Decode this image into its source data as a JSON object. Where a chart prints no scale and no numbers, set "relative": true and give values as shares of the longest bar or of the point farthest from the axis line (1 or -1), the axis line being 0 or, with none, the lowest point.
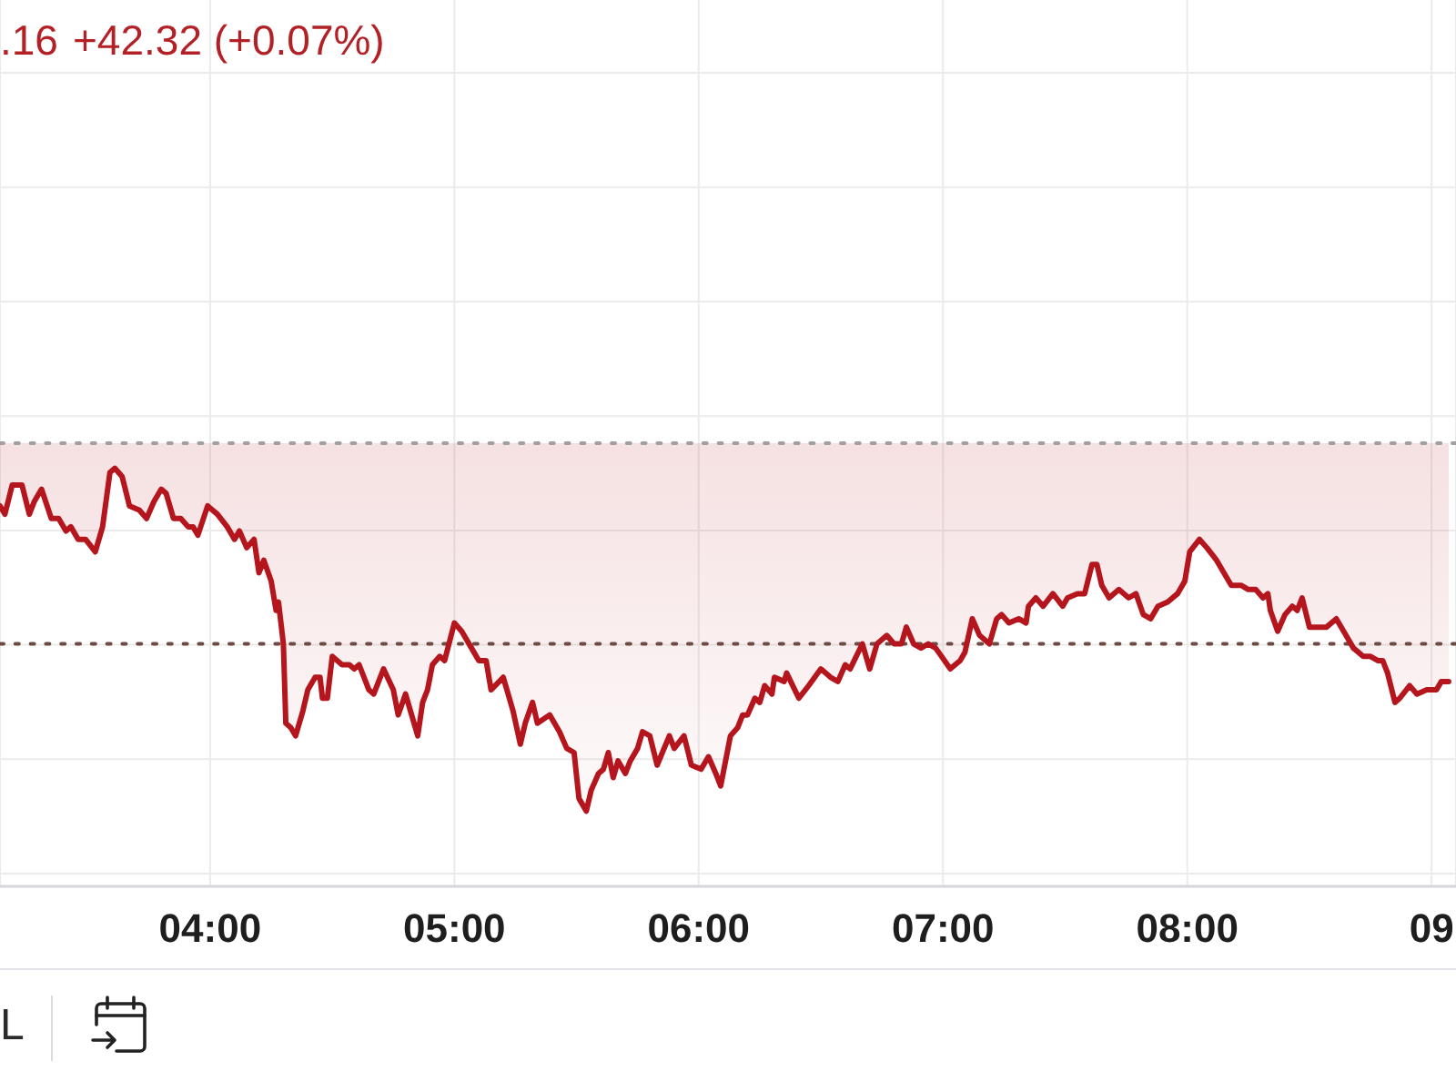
{
  "chart_data": {
    "type": "line",
    "title": ".16",
    "subtitle": "+42.32 (+0.07%)",
    "annotations": [
      "L"
    ],
    "relative": true,
    "x": [
      3.14,
      3.16,
      3.19,
      3.23,
      3.26,
      3.28,
      3.31,
      3.35,
      3.38,
      3.41,
      3.43,
      3.46,
      3.49,
      3.53,
      3.56,
      3.59,
      3.61,
      3.64,
      3.67,
      3.71,
      3.74,
      3.77,
      3.8,
      3.82,
      3.85,
      3.88,
      3.91,
      3.93,
      3.95,
      3.99,
      4.03,
      4.07,
      4.1,
      4.12,
      4.15,
      4.18,
      4.2,
      4.22,
      4.25,
      4.27,
      4.28,
      4.3,
      4.31,
      4.33,
      4.35,
      4.38,
      4.4,
      4.43,
      4.45,
      4.46,
      4.48,
      4.5,
      4.54,
      4.57,
      4.59,
      4.61,
      4.65,
      4.67,
      4.71,
      4.75,
      4.77,
      4.8,
      4.82,
      4.85,
      4.87,
      4.89,
      4.91,
      4.94,
      4.96,
      5.0,
      5.03,
      5.07,
      5.1,
      5.13,
      5.15,
      5.2,
      5.24,
      5.27,
      5.29,
      5.32,
      5.34,
      5.39,
      5.43,
      5.46,
      5.49,
      5.51,
      5.52,
      5.54,
      5.56,
      5.59,
      5.61,
      5.63,
      5.65,
      5.67,
      5.7,
      5.72,
      5.75,
      5.77,
      5.8,
      5.83,
      5.88,
      5.9,
      5.94,
      5.97,
      6.01,
      6.04,
      6.07,
      6.09,
      6.13,
      6.16,
      6.18,
      6.2,
      6.23,
      6.25,
      6.27,
      6.3,
      6.31,
      6.35,
      6.36,
      6.41,
      6.45,
      6.5,
      6.54,
      6.57,
      6.6,
      6.62,
      6.67,
      6.7,
      6.73,
      6.77,
      6.8,
      6.83,
      6.85,
      6.88,
      6.91,
      6.94,
      6.97,
      7.03,
      7.07,
      7.09,
      7.12,
      7.15,
      7.19,
      7.22,
      7.24,
      7.27,
      7.31,
      7.34,
      7.35,
      7.38,
      7.41,
      7.45,
      7.49,
      7.51,
      7.55,
      7.58,
      7.61,
      7.63,
      7.65,
      7.68,
      7.72,
      7.76,
      7.79,
      7.82,
      7.85,
      7.88,
      7.92,
      7.96,
      7.99,
      8.01,
      8.05,
      8.08,
      8.12,
      8.15,
      8.18,
      8.22,
      8.25,
      8.28,
      8.31,
      8.33,
      8.34,
      8.37,
      8.4,
      8.43,
      8.45,
      8.47,
      8.5,
      8.52,
      8.55,
      8.57,
      8.61,
      8.65,
      8.68,
      8.72,
      8.75,
      8.78,
      8.8,
      8.82,
      8.85,
      8.87,
      8.91,
      8.94,
      8.98,
      9.02,
      9.04,
      9.07
    ],
    "series": [
      {
        "color": "#b5161e",
        "values": [
          0.91,
          0.89,
          0.96,
          0.96,
          0.89,
          0.92,
          0.95,
          0.88,
          0.88,
          0.85,
          0.86,
          0.83,
          0.83,
          0.8,
          0.86,
          0.99,
          1.0,
          0.98,
          0.91,
          0.9,
          0.88,
          0.92,
          0.95,
          0.94,
          0.88,
          0.88,
          0.86,
          0.86,
          0.84,
          0.91,
          0.89,
          0.86,
          0.83,
          0.85,
          0.81,
          0.83,
          0.75,
          0.78,
          0.73,
          0.66,
          0.68,
          0.58,
          0.39,
          0.38,
          0.36,
          0.42,
          0.47,
          0.5,
          0.5,
          0.45,
          0.45,
          0.55,
          0.53,
          0.53,
          0.52,
          0.53,
          0.47,
          0.46,
          0.52,
          0.47,
          0.41,
          0.46,
          0.42,
          0.36,
          0.44,
          0.47,
          0.53,
          0.55,
          0.54,
          0.63,
          0.61,
          0.57,
          0.54,
          0.54,
          0.47,
          0.5,
          0.42,
          0.34,
          0.39,
          0.44,
          0.39,
          0.41,
          0.37,
          0.33,
          0.32,
          0.21,
          0.2,
          0.18,
          0.23,
          0.27,
          0.28,
          0.32,
          0.26,
          0.3,
          0.27,
          0.3,
          0.33,
          0.37,
          0.36,
          0.29,
          0.36,
          0.33,
          0.36,
          0.29,
          0.28,
          0.31,
          0.27,
          0.24,
          0.36,
          0.38,
          0.41,
          0.41,
          0.45,
          0.44,
          0.48,
          0.46,
          0.5,
          0.49,
          0.51,
          0.45,
          0.48,
          0.52,
          0.5,
          0.49,
          0.53,
          0.52,
          0.58,
          0.52,
          0.58,
          0.6,
          0.58,
          0.58,
          0.62,
          0.58,
          0.57,
          0.58,
          0.57,
          0.52,
          0.54,
          0.56,
          0.64,
          0.6,
          0.58,
          0.64,
          0.65,
          0.63,
          0.64,
          0.63,
          0.67,
          0.69,
          0.67,
          0.7,
          0.67,
          0.69,
          0.7,
          0.7,
          0.77,
          0.77,
          0.72,
          0.69,
          0.71,
          0.69,
          0.7,
          0.65,
          0.64,
          0.67,
          0.68,
          0.7,
          0.73,
          0.8,
          0.83,
          0.81,
          0.78,
          0.75,
          0.72,
          0.72,
          0.71,
          0.71,
          0.69,
          0.7,
          0.66,
          0.61,
          0.65,
          0.67,
          0.66,
          0.69,
          0.62,
          0.62,
          0.62,
          0.62,
          0.64,
          0.6,
          0.57,
          0.55,
          0.55,
          0.54,
          0.54,
          0.51,
          0.44,
          0.45,
          0.48,
          0.46,
          0.47,
          0.47,
          0.49,
          0.49
        ],
        "lower": [
          0.91,
          0.89,
          0.96,
          0.96,
          0.89,
          0.92,
          0.95,
          0.88,
          0.88,
          0.85,
          0.86,
          0.83,
          0.83,
          0.8,
          0.86,
          0.99,
          1.0,
          0.98,
          0.91,
          0.9,
          0.88,
          0.92,
          0.95,
          0.94,
          0.88,
          0.88,
          0.86,
          0.86,
          0.84,
          0.91,
          0.89,
          0.86,
          0.83,
          0.85,
          0.81,
          0.83,
          0.75,
          0.78,
          0.73,
          0.66,
          0.68,
          0.58,
          0.39,
          0.38,
          0.36,
          0.42,
          0.47,
          0.5,
          0.5,
          0.45,
          0.45,
          0.55,
          0.53,
          0.53,
          0.52,
          0.53,
          0.47,
          0.46,
          0.52,
          0.47,
          0.41,
          0.46,
          0.42,
          0.36,
          0.44,
          0.47,
          0.53,
          0.55,
          0.54,
          0.63,
          0.61,
          0.57,
          0.54,
          0.54,
          0.47,
          0.5,
          0.42,
          0.34,
          0.39,
          0.44,
          0.39,
          0.41,
          0.37,
          0.33,
          0.32,
          0.21,
          0.2,
          0.18,
          0.23,
          0.27,
          0.28,
          0.32,
          0.26,
          0.3,
          0.27,
          0.3,
          0.33,
          0.37,
          0.36,
          0.29,
          0.36,
          0.33,
          0.36,
          0.29,
          0.28,
          0.31,
          0.27,
          0.24,
          0.36,
          0.38,
          0.41,
          0.41,
          0.45,
          0.44,
          0.48,
          0.46,
          0.5,
          0.49,
          0.51,
          0.45,
          0.48,
          0.52,
          0.5,
          0.49,
          0.53,
          0.52,
          0.58,
          0.52,
          0.58,
          0.6,
          0.58,
          0.58,
          0.62,
          0.58,
          0.57,
          0.58,
          0.57,
          0.52,
          0.54,
          0.56,
          0.64,
          0.6,
          0.58,
          0.64,
          0.65,
          0.63,
          0.64,
          0.63,
          0.67,
          0.69,
          0.67,
          0.7,
          0.67,
          0.69,
          0.7,
          0.7,
          0.77,
          0.77,
          0.72,
          0.69,
          0.71,
          0.69,
          0.7,
          0.65,
          0.64,
          0.67,
          0.68,
          0.7,
          0.73,
          0.8,
          0.83,
          0.81,
          0.78,
          0.75,
          0.72,
          0.72,
          0.71,
          0.71,
          0.69,
          0.7,
          0.66,
          0.61,
          0.65,
          0.67,
          0.66,
          0.69,
          0.62,
          0.62,
          0.62,
          0.62,
          0.64,
          0.6,
          0.57,
          0.55,
          0.55,
          0.54,
          0.54,
          0.51,
          0.44,
          0.45,
          0.48,
          0.46,
          0.47,
          0.47,
          0.49,
          0.49
        ],
        "upper": [
          1.06,
          1.06,
          1.06,
          1.06,
          1.06,
          1.06,
          1.06,
          1.06,
          1.06,
          1.06,
          1.06,
          1.06,
          1.06,
          1.06,
          1.06,
          1.06,
          1.06,
          1.06,
          1.06,
          1.06,
          1.06,
          1.06,
          1.06,
          1.06,
          1.06,
          1.06,
          1.06,
          1.06,
          1.06,
          1.06,
          1.06,
          1.06,
          1.06,
          1.06,
          1.06,
          1.06,
          1.06,
          1.06,
          1.06,
          1.06,
          1.06,
          1.06,
          1.06,
          1.06,
          1.06,
          1.06,
          1.06,
          1.06,
          1.06,
          1.06,
          1.06,
          1.06,
          1.06,
          1.06,
          1.06,
          1.06,
          1.06,
          1.06,
          1.06,
          1.06,
          1.06,
          1.06,
          1.06,
          1.06,
          1.06,
          1.06,
          1.06,
          1.06,
          1.06,
          1.06,
          1.06,
          1.06,
          1.06,
          1.06,
          1.06,
          1.06,
          1.06,
          1.06,
          1.06,
          1.06,
          1.06,
          1.06,
          1.06,
          1.06,
          1.06,
          1.06,
          1.06,
          1.06,
          1.06,
          1.06,
          1.06,
          1.06,
          1.06,
          1.06,
          1.06,
          1.06,
          1.06,
          1.06,
          1.06,
          1.06,
          1.06,
          1.06,
          1.06,
          1.06,
          1.06,
          1.06,
          1.06,
          1.06,
          1.06,
          1.06,
          1.06,
          1.06,
          1.06,
          1.06,
          1.06,
          1.06,
          1.06,
          1.06,
          1.06,
          1.06,
          1.06,
          1.06,
          1.06,
          1.06,
          1.06,
          1.06,
          1.06,
          1.06,
          1.06,
          1.06,
          1.06,
          1.06,
          1.06,
          1.06,
          1.06,
          1.06,
          1.06,
          1.06,
          1.06,
          1.06,
          1.06,
          1.06,
          1.06,
          1.06,
          1.06,
          1.06,
          1.06,
          1.06,
          1.06,
          1.06,
          1.06,
          1.06,
          1.06,
          1.06,
          1.06,
          1.06,
          1.06,
          1.06,
          1.06,
          1.06,
          1.06,
          1.06,
          1.06,
          1.06,
          1.06,
          1.06,
          1.06,
          1.06,
          1.06,
          1.06,
          1.06,
          1.06,
          1.06,
          1.06,
          1.06,
          1.06,
          1.06,
          1.06,
          1.06,
          1.06,
          1.06,
          1.06,
          1.06,
          1.06,
          1.06,
          1.06,
          1.06,
          1.06,
          1.06,
          1.06,
          1.06,
          1.06,
          1.06,
          1.06,
          1.06,
          1.06,
          1.06,
          1.06,
          1.06,
          1.06,
          1.06,
          1.06,
          1.06,
          1.06,
          1.06,
          1.06
        ]
      }
    ],
    "line_style": "solid",
    "xlim": [
      3.14,
      9.1
    ],
    "xticks": [
      {
        "value": 4,
        "label": "04:00"
      },
      {
        "value": 5,
        "label": "05:00"
      },
      {
        "value": 6,
        "label": "06:00"
      },
      {
        "value": 7,
        "label": "07:00"
      },
      {
        "value": 8,
        "label": "08:00"
      },
      {
        "value": 9,
        "label": "09"
      }
    ],
    "ref_lines": [
      {
        "axis": "y",
        "value": 1.06,
        "color": "#a0a0a0",
        "line_style": "dotted"
      },
      {
        "axis": "y",
        "value": 0.58,
        "color": "#6e4a44",
        "line_style": "dotted"
      }
    ],
    "grid": true
  }
}
